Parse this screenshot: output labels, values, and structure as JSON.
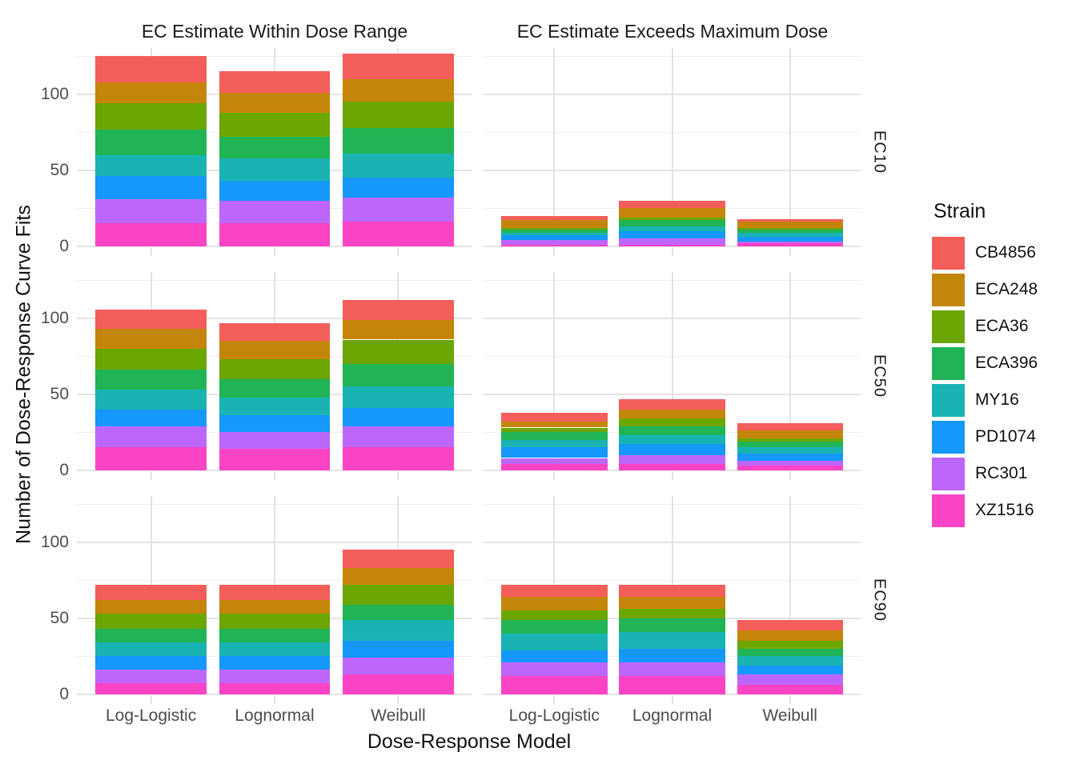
{
  "chart_data": {
    "type": "bar",
    "stacked": true,
    "xlabel": "Dose-Response Model",
    "ylabel": "Number of Dose-Response Curve Fits",
    "legend_title": "Strain",
    "legend_position": "right",
    "facet_columns": [
      "EC Estimate Within Dose Range",
      "EC Estimate Exceeds Maximum Dose"
    ],
    "facet_rows": [
      "EC10",
      "EC50",
      "EC90"
    ],
    "categories": [
      "Log-Logistic",
      "Lognormal",
      "Weibull"
    ],
    "y_ticks": [
      0,
      50,
      100
    ],
    "y_tick_labels": [
      "0",
      "50",
      "100"
    ],
    "y_minor_ticks": [
      25,
      75,
      125
    ],
    "ylim": [
      0,
      130
    ],
    "grid": true,
    "series": [
      {
        "name": "CB4856",
        "color": "#F35E5A"
      },
      {
        "name": "ECA248",
        "color": "#C4860A"
      },
      {
        "name": "ECA36",
        "color": "#6CA605"
      },
      {
        "name": "ECA396",
        "color": "#21B455"
      },
      {
        "name": "MY16",
        "color": "#1AB3B4"
      },
      {
        "name": "PD1074",
        "color": "#1598FA"
      },
      {
        "name": "RC301",
        "color": "#BD66FA"
      },
      {
        "name": "XZ1516",
        "color": "#FB43C5"
      }
    ],
    "stack_order_bottom_to_top": [
      "XZ1516",
      "RC301",
      "PD1074",
      "MY16",
      "ECA396",
      "ECA36",
      "ECA248",
      "CB4856"
    ],
    "panels": [
      {
        "row": 0,
        "col": 0,
        "row_label": "EC10",
        "col_label": "EC Estimate Within Dose Range",
        "values": {
          "CB4856": [
            17,
            14,
            17
          ],
          "ECA248": [
            14,
            13,
            15
          ],
          "ECA36": [
            17,
            16,
            17
          ],
          "ECA396": [
            17,
            14,
            17
          ],
          "MY16": [
            14,
            15,
            16
          ],
          "PD1074": [
            15,
            13,
            13
          ],
          "RC301": [
            16,
            15,
            16
          ],
          "XZ1516": [
            15,
            15,
            16
          ]
        },
        "totals": [
          125,
          115,
          127
        ]
      },
      {
        "row": 0,
        "col": 1,
        "row_label": "EC10",
        "col_label": "EC Estimate Exceeds Maximum Dose",
        "values": {
          "CB4856": [
            3,
            5,
            2
          ],
          "ECA248": [
            5,
            6,
            4
          ],
          "ECA36": [
            1,
            2,
            1
          ],
          "ECA396": [
            2,
            4,
            2
          ],
          "MY16": [
            2,
            3,
            3
          ],
          "PD1074": [
            3,
            5,
            3
          ],
          "RC301": [
            3,
            4,
            1
          ],
          "XZ1516": [
            1,
            1,
            2
          ]
        },
        "totals": [
          20,
          30,
          18
        ]
      },
      {
        "row": 1,
        "col": 0,
        "row_label": "EC50",
        "col_label": "EC Estimate Within Dose Range",
        "values": {
          "CB4856": [
            13,
            12,
            13
          ],
          "ECA248": [
            13,
            12,
            13
          ],
          "ECA36": [
            14,
            13,
            16
          ],
          "ECA396": [
            13,
            12,
            15
          ],
          "MY16": [
            13,
            12,
            14
          ],
          "PD1074": [
            11,
            11,
            12
          ],
          "RC301": [
            14,
            11,
            14
          ],
          "XZ1516": [
            15,
            14,
            15
          ]
        },
        "totals": [
          106,
          97,
          112
        ]
      },
      {
        "row": 1,
        "col": 1,
        "row_label": "EC50",
        "col_label": "EC Estimate Exceeds Maximum Dose",
        "values": {
          "CB4856": [
            6,
            7,
            5
          ],
          "ECA248": [
            4,
            6,
            5
          ],
          "ECA36": [
            3,
            5,
            2
          ],
          "ECA396": [
            5,
            6,
            4
          ],
          "MY16": [
            5,
            6,
            4
          ],
          "PD1074": [
            7,
            7,
            5
          ],
          "RC301": [
            4,
            6,
            3
          ],
          "XZ1516": [
            4,
            4,
            3
          ]
        },
        "totals": [
          38,
          47,
          31
        ]
      },
      {
        "row": 2,
        "col": 0,
        "row_label": "EC90",
        "col_label": "EC Estimate Within Dose Range",
        "values": {
          "CB4856": [
            10,
            10,
            12
          ],
          "ECA248": [
            9,
            9,
            11
          ],
          "ECA36": [
            10,
            10,
            13
          ],
          "ECA396": [
            9,
            9,
            10
          ],
          "MY16": [
            9,
            9,
            14
          ],
          "PD1074": [
            9,
            9,
            11
          ],
          "RC301": [
            9,
            9,
            11
          ],
          "XZ1516": [
            7,
            7,
            13
          ]
        },
        "totals": [
          72,
          72,
          95
        ]
      },
      {
        "row": 2,
        "col": 1,
        "row_label": "EC90",
        "col_label": "EC Estimate Exceeds Maximum Dose",
        "values": {
          "CB4856": [
            8,
            8,
            7
          ],
          "ECA248": [
            9,
            8,
            7
          ],
          "ECA36": [
            6,
            6,
            5
          ],
          "ECA396": [
            9,
            9,
            5
          ],
          "MY16": [
            11,
            11,
            6
          ],
          "PD1074": [
            8,
            9,
            6
          ],
          "RC301": [
            9,
            9,
            7
          ],
          "XZ1516": [
            12,
            12,
            6
          ]
        },
        "totals": [
          72,
          72,
          49
        ]
      }
    ]
  },
  "style": {
    "background": "#FFFFFF",
    "grid_major_color": "#E3E3E3",
    "grid_minor_color": "#EDEDED",
    "axis_text_color": "#4D4D4D",
    "title_text_color": "#111111",
    "strip_text_color": "#1A1A1A"
  }
}
